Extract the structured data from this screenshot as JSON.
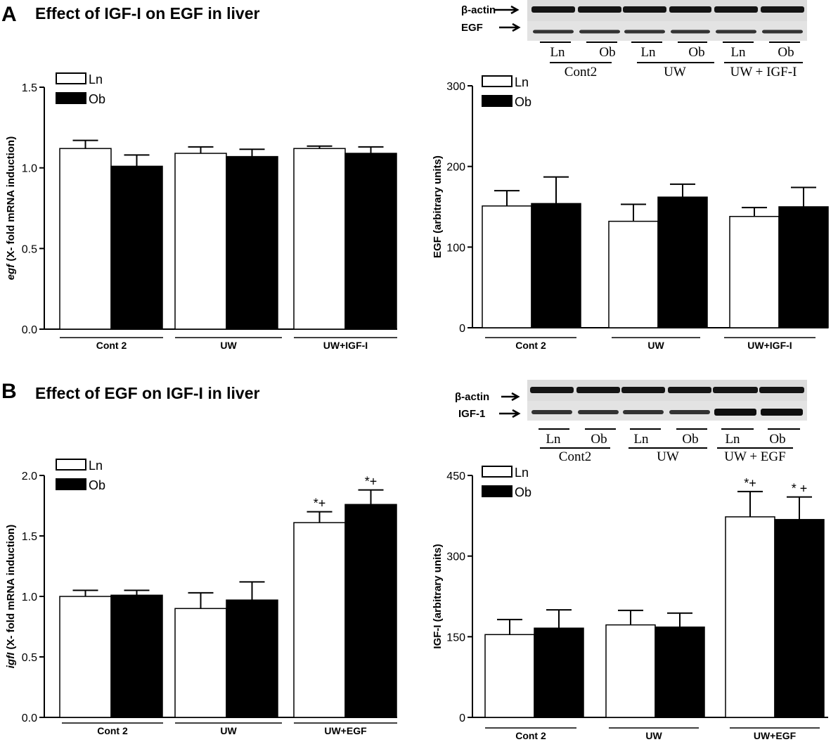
{
  "panels": [
    {
      "letter": "A",
      "title": "Effect of IGF-I on EGF in liver"
    },
    {
      "letter": "B",
      "title": "Effect of EGF on IGF-I in liver"
    }
  ],
  "blots": [
    {
      "rows": [
        "β-actin",
        "EGF"
      ],
      "lane_labels": [
        "Ln",
        "Ob",
        "Ln",
        "Ob",
        "Ln",
        "Ob"
      ],
      "groups": [
        "Cont2",
        "UW",
        "UW + IGF-I"
      ]
    },
    {
      "rows": [
        "β-actin",
        "IGF-1"
      ],
      "lane_labels": [
        "Ln",
        "Ob",
        "Ln",
        "Ob",
        "Ln",
        "Ob"
      ],
      "groups": [
        "Cont2",
        "UW",
        "UW + EGF"
      ]
    }
  ],
  "chart_data": [
    {
      "type": "bar",
      "panel": "A",
      "ylabel_italic": "egf",
      "ylabel": " (X- fold mRNA induction)",
      "categories": [
        "Cont 2",
        "UW",
        "UW+IGF-I"
      ],
      "ylim": [
        0,
        1.5
      ],
      "yticks": [
        "0.0",
        "0.5",
        "1.0",
        "1.5"
      ],
      "legend": {
        "placement": "top-left"
      },
      "series": [
        {
          "name": "Ln",
          "color": "#ffffff",
          "values": [
            1.12,
            1.09,
            1.12
          ],
          "errors": [
            0.05,
            0.04,
            0.015
          ]
        },
        {
          "name": "Ob",
          "color": "#000000",
          "values": [
            1.01,
            1.07,
            1.09
          ],
          "errors": [
            0.07,
            0.045,
            0.04
          ]
        }
      ],
      "annotations": []
    },
    {
      "type": "bar",
      "panel": "A",
      "ylabel_italic": "",
      "ylabel": "EGF (arbitrary units)",
      "categories": [
        "Cont 2",
        "UW",
        "UW+IGF-I"
      ],
      "ylim": [
        0,
        300
      ],
      "yticks": [
        "0",
        "100",
        "200",
        "300"
      ],
      "legend": {
        "placement": "top-left"
      },
      "series": [
        {
          "name": "Ln",
          "color": "#ffffff",
          "values": [
            151,
            132,
            138
          ],
          "errors": [
            19,
            21,
            11
          ]
        },
        {
          "name": "Ob",
          "color": "#000000",
          "values": [
            154,
            162,
            150
          ],
          "errors": [
            33,
            16,
            24
          ]
        }
      ],
      "annotations": []
    },
    {
      "type": "bar",
      "panel": "B",
      "ylabel_italic": "igfI",
      "ylabel": " (X- fold mRNA induction)",
      "categories": [
        "Cont 2",
        "UW",
        "UW+EGF"
      ],
      "ylim": [
        0,
        2.0
      ],
      "yticks": [
        "0.0",
        "0.5",
        "1.0",
        "1.5",
        "2.0"
      ],
      "legend": {
        "placement": "top-left"
      },
      "series": [
        {
          "name": "Ln",
          "color": "#ffffff",
          "values": [
            1.0,
            0.9,
            1.61
          ],
          "errors": [
            0.05,
            0.13,
            0.09
          ]
        },
        {
          "name": "Ob",
          "color": "#000000",
          "values": [
            1.01,
            0.97,
            1.76
          ],
          "errors": [
            0.04,
            0.15,
            0.12
          ]
        }
      ],
      "annotations": [
        {
          "category": 2,
          "series": 0,
          "text": "*+"
        },
        {
          "category": 2,
          "series": 1,
          "text": "*+"
        }
      ]
    },
    {
      "type": "bar",
      "panel": "B",
      "ylabel_italic": "",
      "ylabel": "IGF-I  (arbitrary units)",
      "categories": [
        "Cont 2",
        "UW",
        "UW+EGF"
      ],
      "ylim": [
        0,
        450
      ],
      "yticks": [
        "0",
        "150",
        "300",
        "450"
      ],
      "legend": {
        "placement": "top-left"
      },
      "series": [
        {
          "name": "Ln",
          "color": "#ffffff",
          "values": [
            154,
            172,
            373
          ],
          "errors": [
            28,
            27,
            47
          ]
        },
        {
          "name": "Ob",
          "color": "#000000",
          "values": [
            166,
            168,
            368
          ],
          "errors": [
            34,
            26,
            42
          ]
        }
      ],
      "annotations": [
        {
          "category": 2,
          "series": 0,
          "text": "*+"
        },
        {
          "category": 2,
          "series": 1,
          "text": "* +"
        }
      ]
    }
  ]
}
